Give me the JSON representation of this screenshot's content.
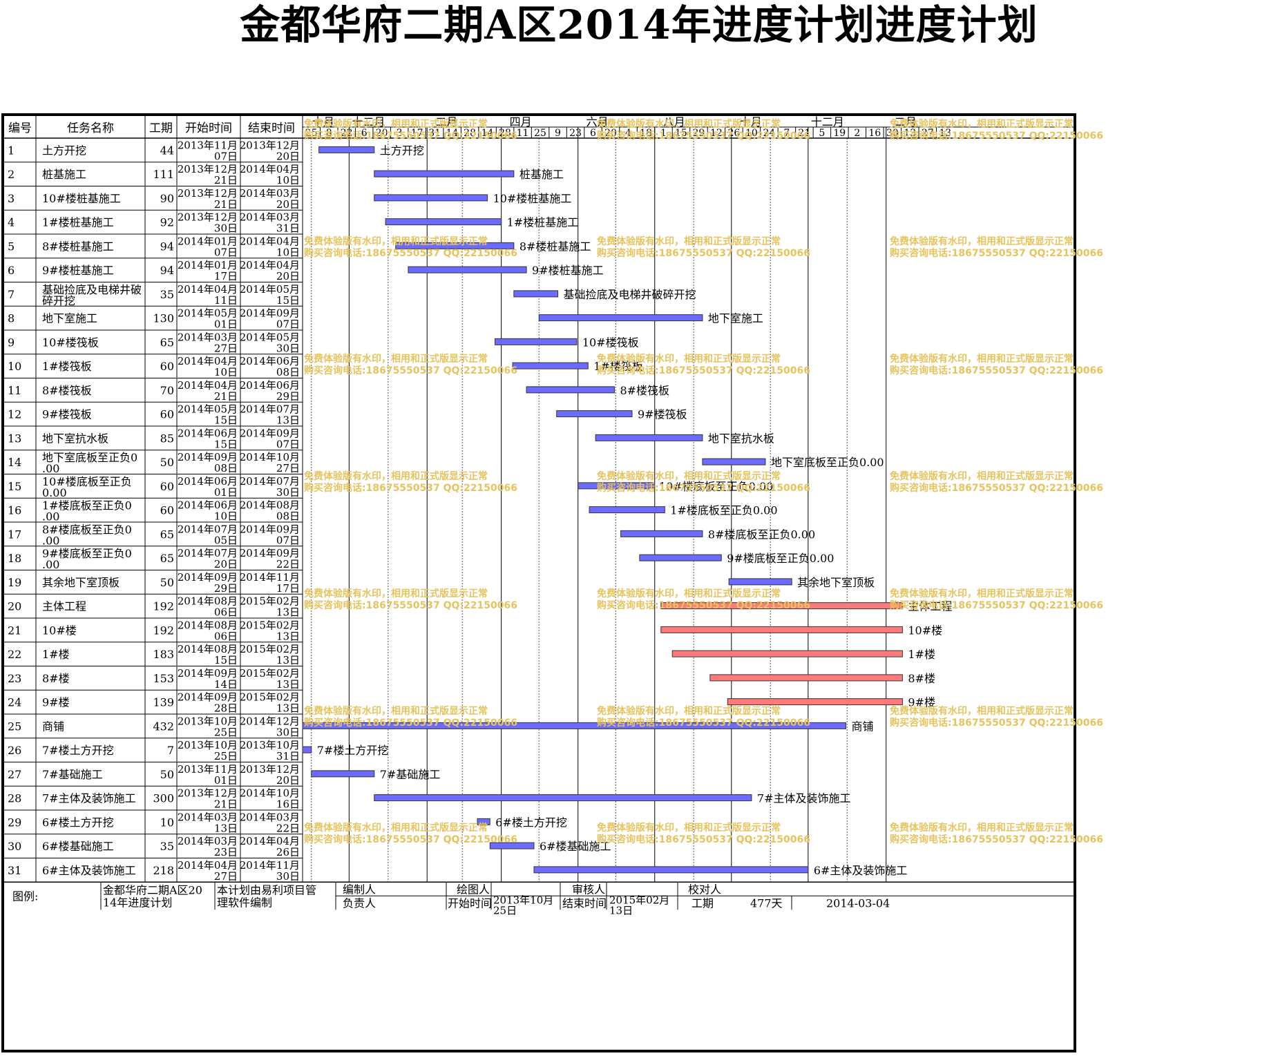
{
  "title": "金都华府二期A区2014年进度计划进度计划",
  "headers": {
    "id": "编号",
    "name": "任务名称",
    "duration": "工期",
    "start": "开始时间",
    "end": "结束时间"
  },
  "timeline": {
    "months": [
      "十月",
      "十二月",
      "二月",
      "四月",
      "六月",
      "八月",
      "十月",
      "十二月",
      "二月"
    ],
    "days": [
      "25",
      "8",
      "22",
      "6",
      "20",
      "3",
      "17",
      "31",
      "14",
      "28",
      "14",
      "28",
      "11",
      "25",
      "9",
      "23",
      "6",
      "20",
      "4",
      "18",
      "1",
      "15",
      "29",
      "12",
      "26",
      "10",
      "24",
      "7",
      "21",
      "5",
      "19",
      "2",
      "16",
      "30",
      "13",
      "27",
      "13"
    ]
  },
  "colors": {
    "normal": "#6b6bff",
    "critical": "#ff7a7a",
    "gridline": "#000000",
    "watermark": "#e7c35d"
  },
  "tasks": [
    {
      "id": "1",
      "name": "土方开挖",
      "duration": "44",
      "start": [
        "2013年11月",
        "07日"
      ],
      "end": [
        "2013年12月",
        "20日"
      ],
      "label": "土方开挖",
      "s": "2013-11-07",
      "e": "2013-12-20",
      "crit": false
    },
    {
      "id": "2",
      "name": "桩基施工",
      "duration": "111",
      "start": [
        "2013年12月",
        "21日"
      ],
      "end": [
        "2014年04月",
        "10日"
      ],
      "label": "桩基施工",
      "s": "2013-12-21",
      "e": "2014-04-10",
      "crit": false
    },
    {
      "id": "3",
      "name": "10#楼桩基施工",
      "duration": "90",
      "start": [
        "2013年12月",
        "21日"
      ],
      "end": [
        "2014年03月",
        "20日"
      ],
      "label": "10#楼桩基施工",
      "s": "2013-12-21",
      "e": "2014-03-20",
      "crit": false
    },
    {
      "id": "4",
      "name": "1#楼桩基施工",
      "duration": "92",
      "start": [
        "2013年12月",
        "30日"
      ],
      "end": [
        "2014年03月",
        "31日"
      ],
      "label": "1#楼桩基施工",
      "s": "2013-12-30",
      "e": "2014-03-31",
      "crit": false
    },
    {
      "id": "5",
      "name": "8#楼桩基施工",
      "duration": "94",
      "start": [
        "2014年01月",
        "07日"
      ],
      "end": [
        "2014年04月",
        "10日"
      ],
      "label": "8#楼桩基施工",
      "s": "2014-01-07",
      "e": "2014-04-10",
      "crit": false
    },
    {
      "id": "6",
      "name": "9#楼桩基施工",
      "duration": "94",
      "start": [
        "2014年01月",
        "17日"
      ],
      "end": [
        "2014年04月",
        "20日"
      ],
      "label": "9#楼桩基施工",
      "s": "2014-01-17",
      "e": "2014-04-20",
      "crit": false
    },
    {
      "id": "7",
      "name": "基础捡底及电梯井破碎开挖",
      "duration": "35",
      "start": [
        "2014年04月",
        "11日"
      ],
      "end": [
        "2014年05月",
        "15日"
      ],
      "label": "基础捡底及电梯井破碎开挖",
      "s": "2014-04-11",
      "e": "2014-05-15",
      "crit": false
    },
    {
      "id": "8",
      "name": "地下室施工",
      "duration": "130",
      "start": [
        "2014年05月",
        "01日"
      ],
      "end": [
        "2014年09月",
        "07日"
      ],
      "label": "地下室施工",
      "s": "2014-05-01",
      "e": "2014-09-07",
      "crit": false
    },
    {
      "id": "9",
      "name": "10#楼筏板",
      "duration": "65",
      "start": [
        "2014年03月",
        "27日"
      ],
      "end": [
        "2014年05月",
        "30日"
      ],
      "label": "10#楼筏板",
      "s": "2014-03-27",
      "e": "2014-05-30",
      "crit": false
    },
    {
      "id": "10",
      "name": "1#楼筏板",
      "duration": "60",
      "start": [
        "2014年04月",
        "10日"
      ],
      "end": [
        "2014年06月",
        "08日"
      ],
      "label": "1#楼筏板",
      "s": "2014-04-10",
      "e": "2014-06-08",
      "crit": false
    },
    {
      "id": "11",
      "name": "8#楼筏板",
      "duration": "70",
      "start": [
        "2014年04月",
        "21日"
      ],
      "end": [
        "2014年06月",
        "29日"
      ],
      "label": "8#楼筏板",
      "s": "2014-04-21",
      "e": "2014-06-29",
      "crit": false
    },
    {
      "id": "12",
      "name": "9#楼筏板",
      "duration": "60",
      "start": [
        "2014年05月",
        "15日"
      ],
      "end": [
        "2014年07月",
        "13日"
      ],
      "label": "9#楼筏板",
      "s": "2014-05-15",
      "e": "2014-07-13",
      "crit": false
    },
    {
      "id": "13",
      "name": "地下室抗水板",
      "duration": "85",
      "start": [
        "2014年06月",
        "15日"
      ],
      "end": [
        "2014年09月",
        "07日"
      ],
      "label": "地下室抗水板",
      "s": "2014-06-15",
      "e": "2014-09-07",
      "crit": false
    },
    {
      "id": "14",
      "name": "地下室底板至正负0.00",
      "duration": "50",
      "start": [
        "2014年09月",
        "08日"
      ],
      "end": [
        "2014年10月",
        "27日"
      ],
      "label": "地下室底板至正负0.00",
      "s": "2014-09-08",
      "e": "2014-10-27",
      "crit": false
    },
    {
      "id": "15",
      "name": "10#楼底板至正负0.00",
      "duration": "60",
      "start": [
        "2014年06月",
        "01日"
      ],
      "end": [
        "2014年07月",
        "30日"
      ],
      "label": "10#楼底板至正负0.00",
      "s": "2014-06-01",
      "e": "2014-07-30",
      "crit": false
    },
    {
      "id": "16",
      "name": "1#楼底板至正负0.00",
      "duration": "60",
      "start": [
        "2014年06月",
        "10日"
      ],
      "end": [
        "2014年08月",
        "08日"
      ],
      "label": "1#楼底板至正负0.00",
      "s": "2014-06-10",
      "e": "2014-08-08",
      "crit": false
    },
    {
      "id": "17",
      "name": "8#楼底板至正负0.00",
      "duration": "65",
      "start": [
        "2014年07月",
        "05日"
      ],
      "end": [
        "2014年09月",
        "07日"
      ],
      "label": "8#楼底板至正负0.00",
      "s": "2014-07-05",
      "e": "2014-09-07",
      "crit": false
    },
    {
      "id": "18",
      "name": "9#楼底板至正负0.00",
      "duration": "65",
      "start": [
        "2014年07月",
        "20日"
      ],
      "end": [
        "2014年09月",
        "22日"
      ],
      "label": "9#楼底板至正负0.00",
      "s": "2014-07-20",
      "e": "2014-09-22",
      "crit": false
    },
    {
      "id": "19",
      "name": "其余地下室顶板",
      "duration": "50",
      "start": [
        "2014年09月",
        "29日"
      ],
      "end": [
        "2014年11月",
        "17日"
      ],
      "label": "其余地下室顶板",
      "s": "2014-09-29",
      "e": "2014-11-17",
      "crit": false
    },
    {
      "id": "20",
      "name": "主体工程",
      "duration": "192",
      "start": [
        "2014年08月",
        "06日"
      ],
      "end": [
        "2015年02月",
        "13日"
      ],
      "label": "主体工程",
      "s": "2014-08-06",
      "e": "2015-02-13",
      "crit": true
    },
    {
      "id": "21",
      "name": "10#楼",
      "duration": "192",
      "start": [
        "2014年08月",
        "06日"
      ],
      "end": [
        "2015年02月",
        "13日"
      ],
      "label": "10#楼",
      "s": "2014-08-06",
      "e": "2015-02-13",
      "crit": true
    },
    {
      "id": "22",
      "name": "1#楼",
      "duration": "183",
      "start": [
        "2014年08月",
        "15日"
      ],
      "end": [
        "2015年02月",
        "13日"
      ],
      "label": "1#楼",
      "s": "2014-08-15",
      "e": "2015-02-13",
      "crit": true
    },
    {
      "id": "23",
      "name": "8#楼",
      "duration": "153",
      "start": [
        "2014年09月",
        "14日"
      ],
      "end": [
        "2015年02月",
        "13日"
      ],
      "label": "8#楼",
      "s": "2014-09-14",
      "e": "2015-02-13",
      "crit": true
    },
    {
      "id": "24",
      "name": "9#楼",
      "duration": "139",
      "start": [
        "2014年09月",
        "28日"
      ],
      "end": [
        "2015年02月",
        "13日"
      ],
      "label": "9#楼",
      "s": "2014-09-28",
      "e": "2015-02-13",
      "crit": true
    },
    {
      "id": "25",
      "name": "商铺",
      "duration": "432",
      "start": [
        "2013年10月",
        "25日"
      ],
      "end": [
        "2014年12月",
        "30日"
      ],
      "label": "商铺",
      "s": "2013-10-25",
      "e": "2014-12-30",
      "crit": false
    },
    {
      "id": "26",
      "name": "7#楼土方开挖",
      "duration": "7",
      "start": [
        "2013年10月",
        "25日"
      ],
      "end": [
        "2013年10月",
        "31日"
      ],
      "label": "7#楼土方开挖",
      "s": "2013-10-25",
      "e": "2013-10-31",
      "crit": false
    },
    {
      "id": "27",
      "name": "7#基础施工",
      "duration": "50",
      "start": [
        "2013年11月",
        "01日"
      ],
      "end": [
        "2013年12月",
        "20日"
      ],
      "label": "7#基础施工",
      "s": "2013-11-01",
      "e": "2013-12-20",
      "crit": false
    },
    {
      "id": "28",
      "name": "7#主体及装饰施工",
      "duration": "300",
      "start": [
        "2013年12月",
        "21日"
      ],
      "end": [
        "2014年10月",
        "16日"
      ],
      "label": "7#主体及装饰施工",
      "s": "2013-12-21",
      "e": "2014-10-16",
      "crit": false
    },
    {
      "id": "29",
      "name": "6#楼土方开挖",
      "duration": "10",
      "start": [
        "2014年03月",
        "13日"
      ],
      "end": [
        "2014年03月",
        "22日"
      ],
      "label": "6#楼土方开挖",
      "s": "2014-03-13",
      "e": "2014-03-22",
      "crit": false
    },
    {
      "id": "30",
      "name": "6#楼基础施工",
      "duration": "35",
      "start": [
        "2014年03月",
        "23日"
      ],
      "end": [
        "2014年04月",
        "26日"
      ],
      "label": "6#楼基础施工",
      "s": "2014-03-23",
      "e": "2014-04-26",
      "crit": false
    },
    {
      "id": "31",
      "name": "6#主体及装饰施工",
      "duration": "218",
      "start": [
        "2014年04月",
        "27日"
      ],
      "end": [
        "2014年11月",
        "30日"
      ],
      "label": "6#主体及装饰施工",
      "s": "2014-04-27",
      "e": "2014-11-30",
      "crit": false
    }
  ],
  "footer": {
    "legend": "图例:",
    "project_name": "金都华府二期A区2014年进度计划",
    "software_note": "本计划由易利项目管理软件编制",
    "editor": "编制人",
    "drafter": "绘图人",
    "reviewer": "审核人",
    "checker": "校对人",
    "owner": "负责人",
    "start_label": "开始时间",
    "start_value": "2013年10月25日",
    "end_label": "结束时间",
    "end_value": "2015年02月13日",
    "duration_label": "工期",
    "duration_value": "477天",
    "date": "2014-03-04"
  },
  "watermark": {
    "line1": "免费体验版有水印，相用和正式版显示正常",
    "line2": "购买咨询电话:18675550537 QQ:22150066"
  }
}
